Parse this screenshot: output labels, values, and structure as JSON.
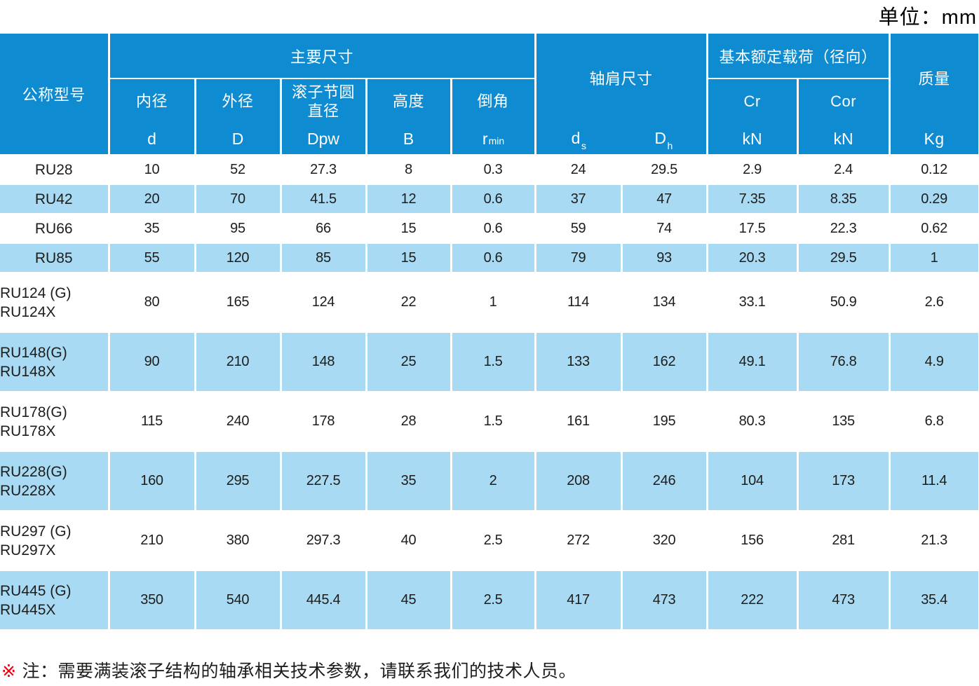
{
  "unit_label": "单位：mm",
  "colors": {
    "header_blue": "#0e8bd1",
    "stripe_blue": "#a8daf3",
    "text_dark": "#1d1d1b",
    "note_red": "#e60012"
  },
  "table": {
    "header": {
      "model_label": "公称型号",
      "main_dims": {
        "group": "主要尺寸",
        "cols": [
          {
            "label": "内径",
            "symbol": "d",
            "sub": ""
          },
          {
            "label": "外径",
            "symbol": "D",
            "sub": ""
          },
          {
            "label": "滚子节圆直径",
            "symbol": "Dpw",
            "sub": ""
          },
          {
            "label": "高度",
            "symbol": "B",
            "sub": ""
          },
          {
            "label": "倒角",
            "symbol": "r",
            "sub": "min"
          }
        ]
      },
      "shoulder": {
        "group": "轴肩尺寸",
        "cols": [
          {
            "symbol": "d",
            "sub": "s"
          },
          {
            "symbol": "D",
            "sub": "h"
          }
        ]
      },
      "load": {
        "group": "基本额定载荷（径向）",
        "cols": [
          {
            "label": "Cr",
            "unit": "kN"
          },
          {
            "label": "Cor",
            "unit": "kN"
          }
        ]
      },
      "mass": {
        "group": "质量",
        "unit": "Kg"
      }
    },
    "rows": [
      {
        "model": [
          "RU28"
        ],
        "values": [
          "10",
          "52",
          "27.3",
          "8",
          "0.3",
          "24",
          "29.5",
          "2.9",
          "2.4",
          "0.12"
        ]
      },
      {
        "model": [
          "RU42"
        ],
        "values": [
          "20",
          "70",
          "41.5",
          "12",
          "0.6",
          "37",
          "47",
          "7.35",
          "8.35",
          "0.29"
        ]
      },
      {
        "model": [
          "RU66"
        ],
        "values": [
          "35",
          "95",
          "66",
          "15",
          "0.6",
          "59",
          "74",
          "17.5",
          "22.3",
          "0.62"
        ]
      },
      {
        "model": [
          "RU85"
        ],
        "values": [
          "55",
          "120",
          "85",
          "15",
          "0.6",
          "79",
          "93",
          "20.3",
          "29.5",
          "1"
        ]
      },
      {
        "model": [
          "RU124 (G)",
          "RU124X"
        ],
        "values": [
          "80",
          "165",
          "124",
          "22",
          "1",
          "114",
          "134",
          "33.1",
          "50.9",
          "2.6"
        ]
      },
      {
        "model": [
          "RU148(G)",
          "RU148X"
        ],
        "values": [
          "90",
          "210",
          "148",
          "25",
          "1.5",
          "133",
          "162",
          "49.1",
          "76.8",
          "4.9"
        ]
      },
      {
        "model": [
          "RU178(G)",
          "RU178X"
        ],
        "values": [
          "115",
          "240",
          "178",
          "28",
          "1.5",
          "161",
          "195",
          "80.3",
          "135",
          "6.8"
        ]
      },
      {
        "model": [
          "RU228(G)",
          "RU228X"
        ],
        "values": [
          "160",
          "295",
          "227.5",
          "35",
          "2",
          "208",
          "246",
          "104",
          "173",
          "11.4"
        ]
      },
      {
        "model": [
          "RU297 (G)",
          "RU297X"
        ],
        "values": [
          "210",
          "380",
          "297.3",
          "40",
          "2.5",
          "272",
          "320",
          "156",
          "281",
          "21.3"
        ]
      },
      {
        "model": [
          "RU445 (G)",
          "RU445X"
        ],
        "values": [
          "350",
          "540",
          "445.4",
          "45",
          "2.5",
          "417",
          "473",
          "222",
          "473",
          "35.4"
        ]
      }
    ]
  },
  "note": {
    "marker": "※",
    "text": "注：需要满装滚子结构的轴承相关技术参数，请联系我们的技术人员。"
  }
}
